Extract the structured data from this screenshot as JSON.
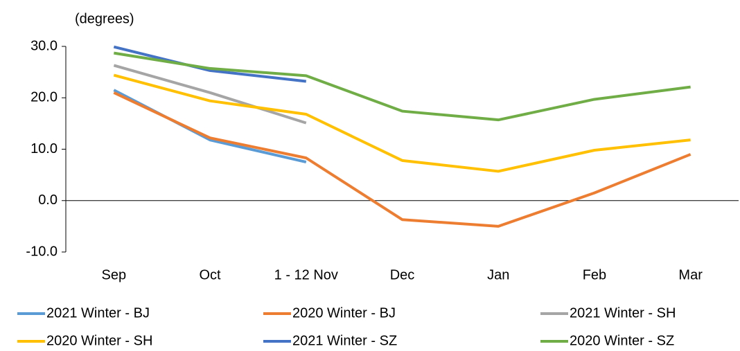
{
  "chart_data": {
    "type": "line",
    "y_axis_label": "(degrees)",
    "categories": [
      "Sep",
      "Oct",
      "1 - 12 Nov",
      "Dec",
      "Jan",
      "Feb",
      "Mar"
    ],
    "series": [
      {
        "name": "2021 Winter - BJ",
        "color": "#5b9bd5",
        "values": [
          21.5,
          11.8,
          7.5,
          null,
          null,
          null,
          null
        ]
      },
      {
        "name": "2020 Winter - BJ",
        "color": "#ed7d31",
        "values": [
          21.0,
          12.2,
          8.3,
          -3.7,
          -5.0,
          1.5,
          9.0
        ]
      },
      {
        "name": "2021 Winter - SH",
        "color": "#a5a5a5",
        "values": [
          26.3,
          21.0,
          15.1,
          null,
          null,
          null,
          null
        ]
      },
      {
        "name": "2020 Winter - SH",
        "color": "#ffc000",
        "values": [
          24.4,
          19.4,
          16.8,
          7.8,
          5.7,
          9.8,
          11.8
        ]
      },
      {
        "name": "2021 Winter - SZ",
        "color": "#4472c4",
        "values": [
          29.9,
          25.3,
          23.2,
          null,
          null,
          null,
          null
        ]
      },
      {
        "name": "2020 Winter - SZ",
        "color": "#70ad47",
        "values": [
          28.7,
          25.7,
          24.3,
          17.4,
          15.7,
          19.7,
          22.1
        ]
      }
    ],
    "ylim": [
      -10,
      30
    ],
    "yticks": [
      {
        "value": -10,
        "label": "-10.0"
      },
      {
        "value": 0,
        "label": "0.0"
      },
      {
        "value": 10,
        "label": "10.0"
      },
      {
        "value": 20,
        "label": "20.0"
      },
      {
        "value": 30,
        "label": "30.0"
      }
    ],
    "grid": false,
    "legend": "bottom"
  }
}
